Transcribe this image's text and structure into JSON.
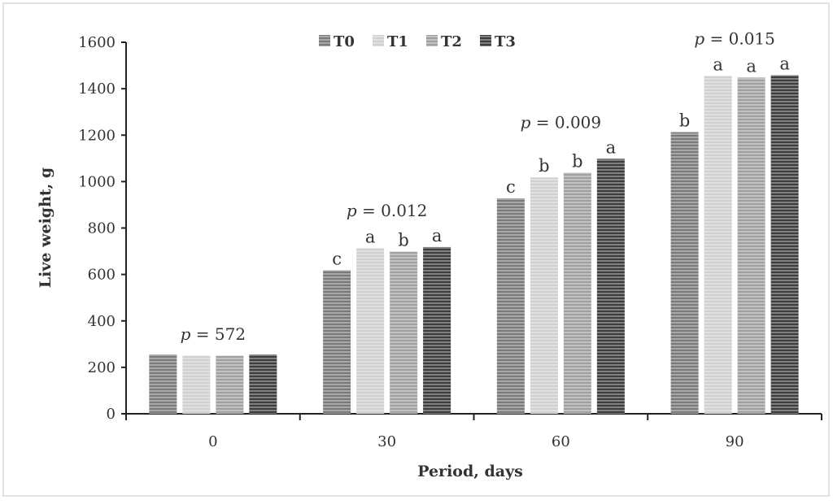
{
  "chart_data": {
    "type": "bar",
    "xlabel": "Period, days",
    "ylabel": "Live weight, g",
    "categories": [
      "0",
      "30",
      "60",
      "90"
    ],
    "ylim": [
      0,
      1600
    ],
    "yticks": [
      0,
      200,
      400,
      600,
      800,
      1000,
      1200,
      1400,
      1600
    ],
    "grid": false,
    "legend_position": "top-center",
    "series": [
      {
        "name": "T0",
        "values": [
          255,
          618,
          928,
          1213
        ],
        "color": "#7a7a7a"
      },
      {
        "name": "T1",
        "values": [
          250,
          713,
          1018,
          1455
        ],
        "color": "#d0d0d0"
      },
      {
        "name": "T2",
        "values": [
          250,
          698,
          1038,
          1448
        ],
        "color": "#a0a0a0"
      },
      {
        "name": "T3",
        "values": [
          255,
          718,
          1098,
          1458
        ],
        "color": "#3c3c3c"
      }
    ],
    "significance_letters": [
      [
        "",
        "",
        "",
        ""
      ],
      [
        "c",
        "a",
        "b",
        "a"
      ],
      [
        "c",
        "b",
        "b",
        "a"
      ],
      [
        "b",
        "a",
        "a",
        "a"
      ]
    ],
    "p_values": [
      {
        "p": "p",
        "text": " = 572"
      },
      {
        "p": "p",
        "text": " = 0.012"
      },
      {
        "p": "p",
        "text": " = 0.009"
      },
      {
        "p": "p",
        "text": " = 0.015"
      }
    ]
  }
}
